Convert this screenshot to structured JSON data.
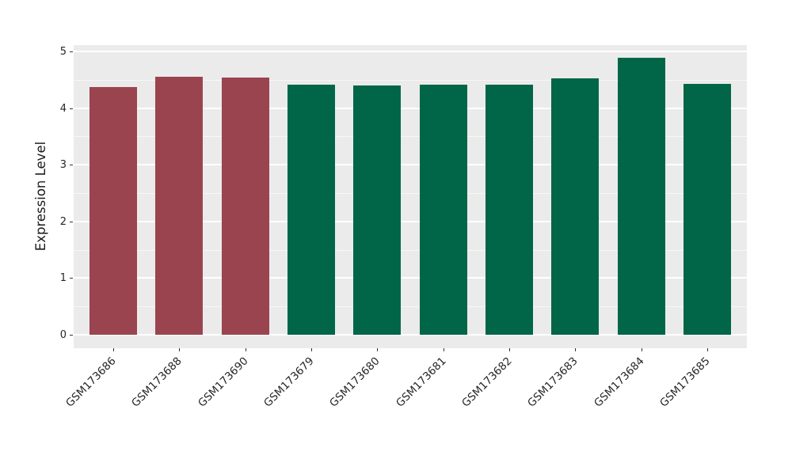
{
  "chart_data": {
    "type": "bar",
    "title": "",
    "xlabel": "",
    "ylabel": "Expression Level",
    "categories": [
      "GSM173686",
      "GSM173688",
      "GSM173690",
      "GSM173679",
      "GSM173680",
      "GSM173681",
      "GSM173682",
      "GSM173683",
      "GSM173684",
      "GSM173685"
    ],
    "values": [
      4.37,
      4.55,
      4.54,
      4.41,
      4.4,
      4.42,
      4.41,
      4.53,
      4.89,
      4.43
    ],
    "bar_colors": [
      "#9A4450",
      "#9A4450",
      "#9A4450",
      "#006647",
      "#006647",
      "#006647",
      "#006647",
      "#006647",
      "#006647",
      "#006647"
    ],
    "ylim": [
      0,
      5
    ],
    "yticks": [
      0,
      1,
      2,
      3,
      4,
      5
    ],
    "minor_yticks": [
      0.5,
      1.5,
      2.5,
      3.5,
      4.5
    ],
    "grid": "major-and-minor, horizontal, white",
    "legend_position": "none",
    "panel_background": "#EBEBEB",
    "grid_color": "#FFFFFF",
    "tick_color": "#333333",
    "label_color": "#262626",
    "x_tick_rotation_deg": 45
  }
}
